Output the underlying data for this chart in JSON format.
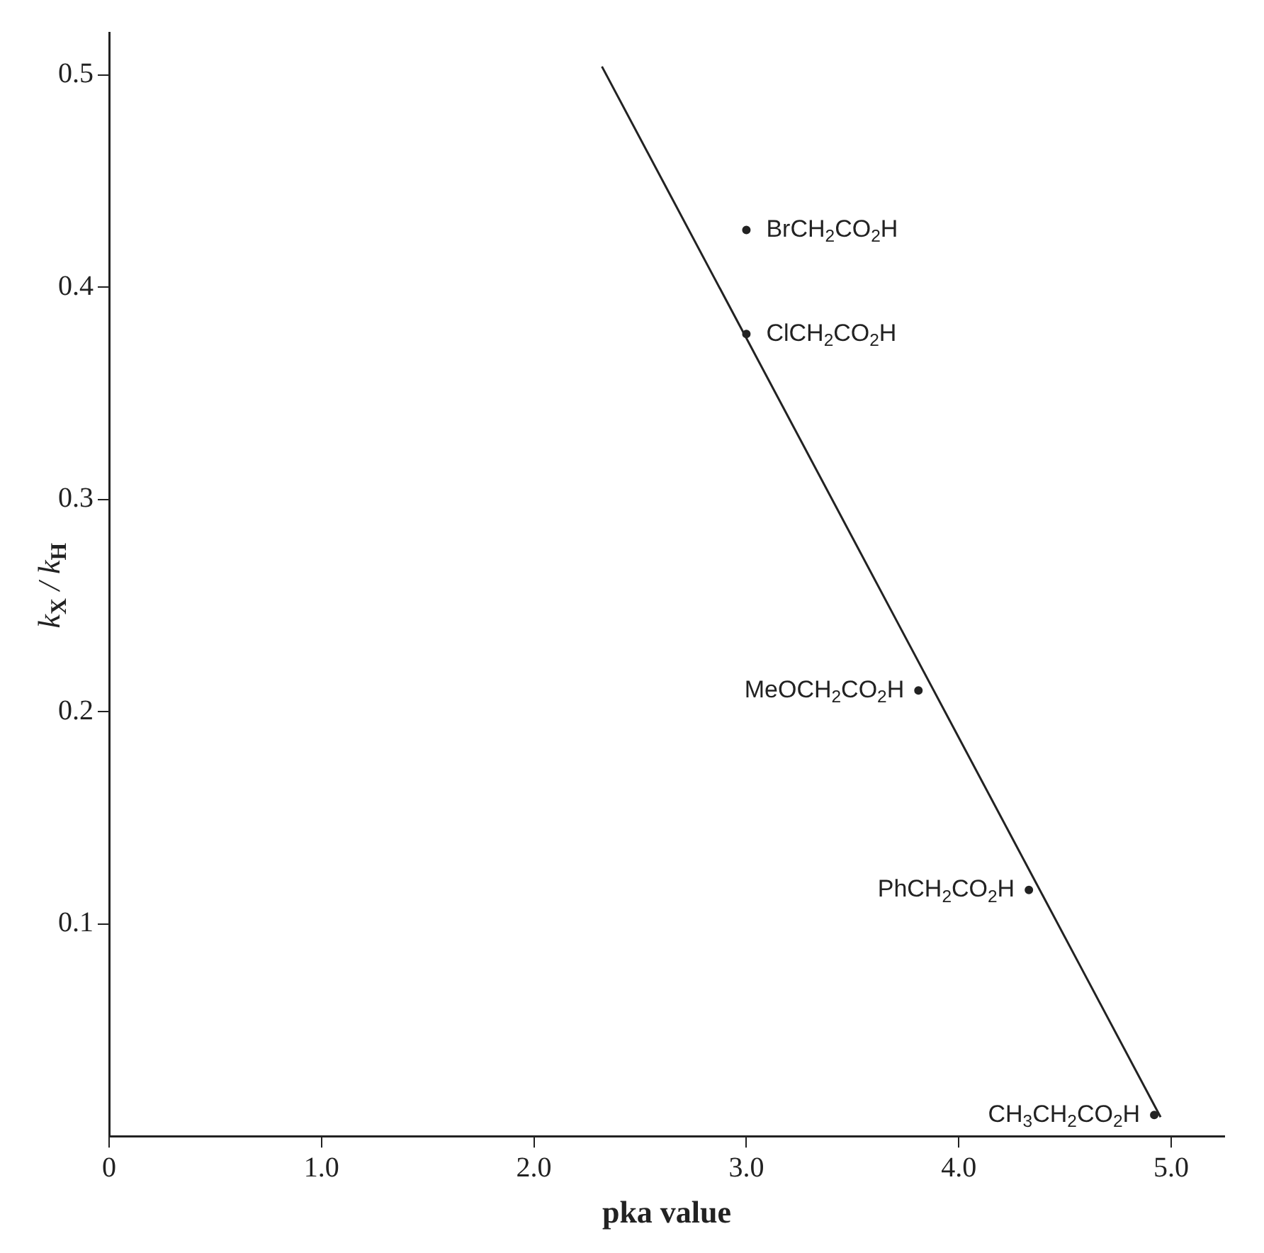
{
  "chart_data": {
    "type": "scatter",
    "xlabel": "pka value",
    "ylabel": "k$_{X}$ / k$_{H}$",
    "x": [
      3.0,
      3.0,
      3.81,
      4.33,
      4.92
    ],
    "series": [
      {
        "color": "#222222",
        "marker": "circle",
        "values": [
          0.427,
          0.378,
          0.21,
          0.116,
          0.01
        ]
      },
      {
        "type": "line",
        "color": "#222222",
        "marker": "none",
        "x": [
          2.32,
          4.95
        ],
        "values": [
          0.504,
          0.009
        ]
      }
    ],
    "xlim": [
      0,
      5.25
    ],
    "ylim": [
      0,
      0.52
    ],
    "xticks": [
      {
        "value": 0,
        "label": "0"
      },
      {
        "value": 1,
        "label": "1.0"
      },
      {
        "value": 2,
        "label": "2.0"
      },
      {
        "value": 3,
        "label": "3.0"
      },
      {
        "value": 4,
        "label": "4.0"
      },
      {
        "value": 5,
        "label": "5.0"
      }
    ],
    "yticks": [
      0.1,
      0.2,
      0.3,
      0.4,
      0.5
    ],
    "annotations": [
      {
        "text": "BrCH$_{2}$CO$_{2}$H",
        "x": 3.0,
        "y": 0.427
      },
      {
        "text": "ClCH$_{2}$CO$_{2}$H",
        "x": 3.0,
        "y": 0.378
      },
      {
        "text": "MeOCH$_{2}$CO$_{2}$H",
        "x": 3.81,
        "y": 0.21
      },
      {
        "text": "PhCH$_{2}$CO$_{2}$H",
        "x": 4.33,
        "y": 0.116
      },
      {
        "text": "CH$_{3}$CH$_{2}$CO$_{2}$H",
        "x": 4.92,
        "y": 0.01
      }
    ],
    "grid": false,
    "legend": false
  }
}
